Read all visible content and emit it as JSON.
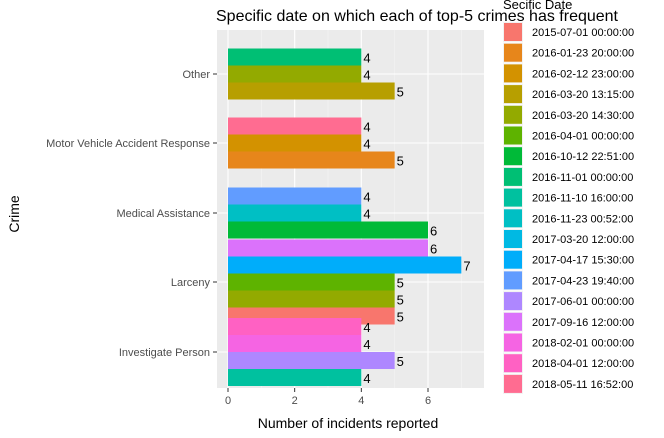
{
  "chart_data": {
    "type": "bar",
    "orientation": "horizontal",
    "title": "Specific date on which each of top-5 crimes has frequent",
    "xlabel": "Number of incidents reported",
    "ylabel": "Crime",
    "xlim": [
      0,
      7.5
    ],
    "xticks": [
      0,
      2,
      4,
      6
    ],
    "grid": true,
    "legend_title": "Secific Date",
    "legend_position": "right",
    "categories": [
      "Other",
      "Motor Vehicle Accident Response",
      "Medical Assistance",
      "Larceny",
      "Investigate Person"
    ],
    "series": [
      {
        "name": "2015-07-01 00:00:00",
        "color": "#F8766D"
      },
      {
        "name": "2016-01-23 20:00:00",
        "color": "#E7861B"
      },
      {
        "name": "2016-02-12 23:00:00",
        "color": "#D39200"
      },
      {
        "name": "2016-03-20 13:15:00",
        "color": "#B79F00"
      },
      {
        "name": "2016-03-20 14:30:00",
        "color": "#93AA00"
      },
      {
        "name": "2016-04-01 00:00:00",
        "color": "#5EB300"
      },
      {
        "name": "2016-10-12 22:51:00",
        "color": "#00BA38"
      },
      {
        "name": "2016-11-01 00:00:00",
        "color": "#00BF74"
      },
      {
        "name": "2016-11-10 16:00:00",
        "color": "#00C19F"
      },
      {
        "name": "2016-11-23 00:52:00",
        "color": "#00BFC4"
      },
      {
        "name": "2017-03-20 12:00:00",
        "color": "#00B9E3"
      },
      {
        "name": "2017-04-17 15:30:00",
        "color": "#00ADFA"
      },
      {
        "name": "2017-04-23 19:40:00",
        "color": "#619CFF"
      },
      {
        "name": "2017-06-01 00:00:00",
        "color": "#AE87FF"
      },
      {
        "name": "2017-09-16 12:00:00",
        "color": "#DB72FB"
      },
      {
        "name": "2018-02-01 00:00:00",
        "color": "#F564E3"
      },
      {
        "name": "2018-04-01 12:00:00",
        "color": "#FF61C3"
      },
      {
        "name": "2018-05-11 16:52:00",
        "color": "#FF6C91"
      }
    ],
    "bars": [
      {
        "category": "Other",
        "series": "2016-11-01 00:00:00",
        "value": 4
      },
      {
        "category": "Other",
        "series": "2016-03-20 14:30:00",
        "value": 4
      },
      {
        "category": "Other",
        "series": "2016-03-20 13:15:00",
        "value": 5
      },
      {
        "category": "Motor Vehicle Accident Response",
        "series": "2018-05-11 16:52:00",
        "value": 4
      },
      {
        "category": "Motor Vehicle Accident Response",
        "series": "2016-02-12 23:00:00",
        "value": 4
      },
      {
        "category": "Motor Vehicle Accident Response",
        "series": "2016-01-23 20:00:00",
        "value": 5
      },
      {
        "category": "Medical Assistance",
        "series": "2017-04-23 19:40:00",
        "value": 4
      },
      {
        "category": "Medical Assistance",
        "series": "2016-11-23 00:52:00",
        "value": 4
      },
      {
        "category": "Medical Assistance",
        "series": "2016-10-12 22:51:00",
        "value": 6
      },
      {
        "category": "Larceny",
        "series": "2017-09-16 12:00:00",
        "value": 6
      },
      {
        "category": "Larceny",
        "series": "2017-04-17 15:30:00",
        "value": 7
      },
      {
        "category": "Larceny",
        "series": "2016-04-01 00:00:00",
        "value": 5
      },
      {
        "category": "Larceny",
        "series": "2016-03-20 14:30:00",
        "value": 5
      },
      {
        "category": "Larceny",
        "series": "2015-07-01 00:00:00",
        "value": 5
      },
      {
        "category": "Investigate Person",
        "series": "2018-04-01 12:00:00",
        "value": 4
      },
      {
        "category": "Investigate Person",
        "series": "2018-02-01 00:00:00",
        "value": 4
      },
      {
        "category": "Investigate Person",
        "series": "2017-06-01 00:00:00",
        "value": 5
      },
      {
        "category": "Investigate Person",
        "series": "2016-11-10 16:00:00",
        "value": 4
      }
    ]
  }
}
